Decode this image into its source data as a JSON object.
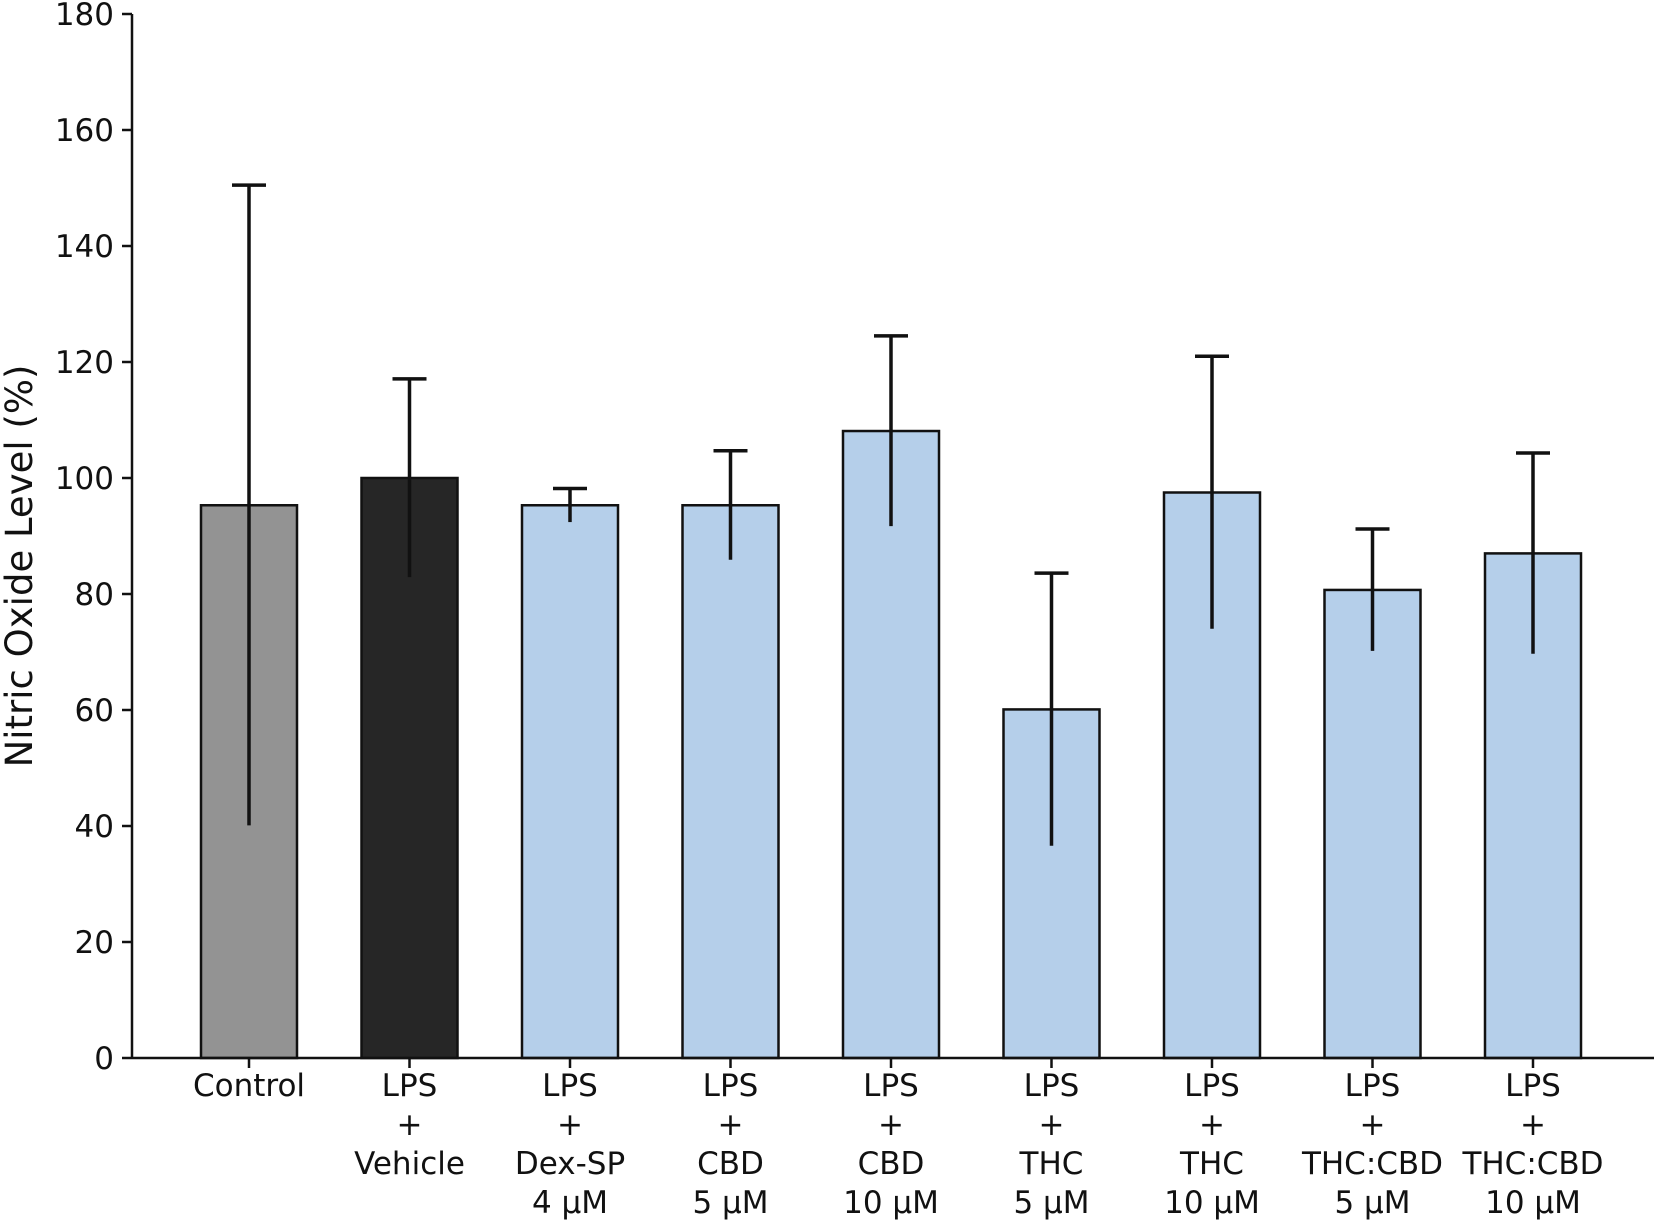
{
  "chart_data": {
    "type": "bar",
    "title": "",
    "xlabel": "",
    "ylabel": "Nitric Oxide Level (%)",
    "ylim": [
      0,
      180
    ],
    "yticks": [
      0,
      20,
      40,
      60,
      80,
      100,
      120,
      140,
      160,
      180
    ],
    "grid": false,
    "legend": "none",
    "categories": [
      [
        "Control"
      ],
      [
        "LPS",
        "+",
        "Vehicle"
      ],
      [
        "LPS",
        "+",
        "Dex-SP",
        "4 µM"
      ],
      [
        "LPS",
        "+",
        "CBD",
        "5 µM"
      ],
      [
        "LPS",
        "+",
        "CBD",
        "10 µM"
      ],
      [
        "LPS",
        "+",
        "THC",
        "5 µM"
      ],
      [
        "LPS",
        "+",
        "THC",
        "10 µM"
      ],
      [
        "LPS",
        "+",
        "THC:CBD",
        "5 µM"
      ],
      [
        "LPS",
        "+",
        "THC:CBD",
        "10 µM"
      ]
    ],
    "values": [
      95.3,
      100.0,
      95.3,
      95.3,
      108.1,
      60.1,
      97.5,
      80.7,
      87.0
    ],
    "errors": [
      55.2,
      17.1,
      2.9,
      9.4,
      16.4,
      23.5,
      23.5,
      10.5,
      17.3
    ],
    "colors": [
      "#939393",
      "#262626",
      "#b5cfea",
      "#b5cfea",
      "#b5cfea",
      "#b5cfea",
      "#b5cfea",
      "#b5cfea",
      "#b5cfea"
    ]
  }
}
